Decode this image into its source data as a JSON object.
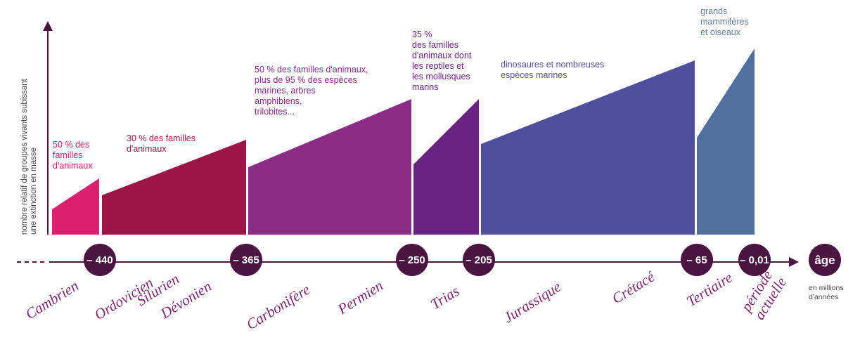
{
  "y_axis_label": [
    "nombre relatif de groupes vivants subissant",
    "une extinction en masse"
  ],
  "annotations": [
    {
      "lines": [
        "50 % des",
        "familles",
        "d'animaux"
      ],
      "color": "#d81b6b"
    },
    {
      "lines": [
        "30 % des familles",
        "d'animaux"
      ],
      "color": "#9b1547"
    },
    {
      "lines": [
        "50 % des familles d'animaux,",
        "plus de 95 % des espèces",
        "marines, arbres",
        "amphibiens,",
        "trilobites..."
      ],
      "color": "#8a2a86"
    },
    {
      "lines": [
        "35 %",
        "des familles",
        "d'animaux dont",
        "les reptiles et",
        "les mollusques",
        "marins"
      ],
      "color": "#6a2380"
    },
    {
      "lines": [
        "dinosaures et nombreuses",
        "espèces marines"
      ],
      "color": "#5b4fa0"
    },
    {
      "lines": [
        "grands",
        "mammifères",
        "et oiseaux"
      ],
      "color": "#6580a8"
    }
  ],
  "band_colors": [
    "#dc1f6e",
    "#9b1547",
    "#8b2c87",
    "#6a2380",
    "#4f4f9e",
    "#52709f"
  ],
  "timeline_color": "#4a1540",
  "markers": [
    "– 440",
    "– 365",
    "– 250",
    "– 205",
    "– 65",
    "– 0,01"
  ],
  "age": {
    "label": "âge",
    "unit": [
      "en millions",
      "d'années"
    ]
  },
  "periods": [
    {
      "lines": [
        "Cambrien"
      ]
    },
    {
      "lines": [
        "Ordovicien"
      ]
    },
    {
      "lines": [
        "Silurien"
      ]
    },
    {
      "lines": [
        "Dévonien"
      ]
    },
    {
      "lines": [
        "Carbonifère"
      ]
    },
    {
      "lines": [
        "Permien"
      ]
    },
    {
      "lines": [
        "Trias"
      ]
    },
    {
      "lines": [
        "Jurassique"
      ]
    },
    {
      "lines": [
        "Crétacé"
      ]
    },
    {
      "lines": [
        "Tertiaire"
      ]
    },
    {
      "lines": [
        "période",
        "actuelle"
      ]
    }
  ]
}
